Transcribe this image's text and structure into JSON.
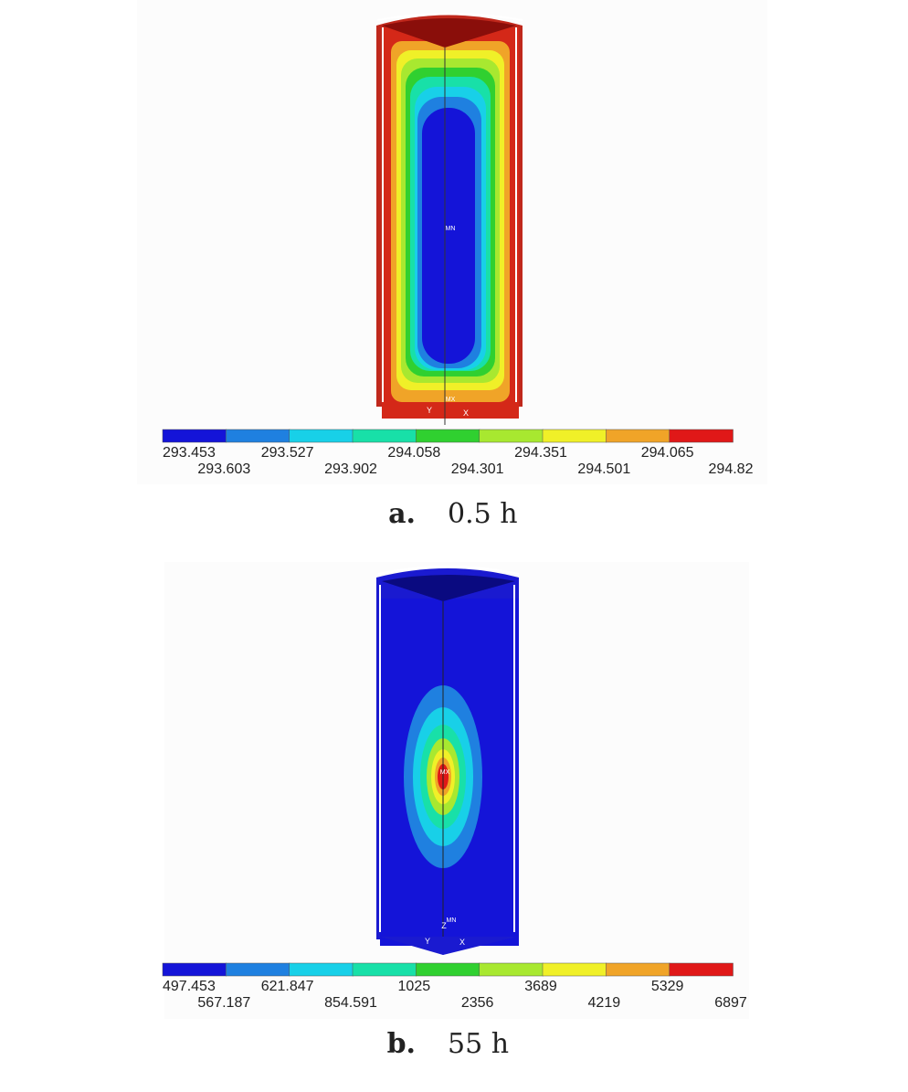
{
  "panels": [
    {
      "label": "a.",
      "caption": "0.5 h",
      "markers": [
        "MN",
        "MX"
      ],
      "triad": [
        "Y",
        "X"
      ],
      "legend": {
        "labels": [
          "293.453",
          "293.603",
          "293.527",
          "293.902",
          "294.058",
          "294.301",
          "294.351",
          "294.501",
          "294.065",
          "294.82"
        ],
        "colors": [
          "#1414d8",
          "#1f80e0",
          "#18d0e8",
          "#18e0a8",
          "#30d030",
          "#a8e830",
          "#f0f028",
          "#f0a428",
          "#e01818"
        ]
      }
    },
    {
      "label": "b.",
      "caption": "55 h",
      "markers": [
        "MX",
        "MN"
      ],
      "triad": [
        "Y",
        "Z",
        "X"
      ],
      "legend": {
        "labels": [
          "497.453",
          "567.187",
          "621.847",
          "854.591",
          "1025",
          "2356",
          "3689",
          "4219",
          "5329",
          "6897"
        ],
        "colors": [
          "#1414d8",
          "#1f80e0",
          "#18d0e8",
          "#18e0a8",
          "#30d030",
          "#a8e830",
          "#f0f028",
          "#f0a428",
          "#e01818"
        ]
      }
    }
  ]
}
